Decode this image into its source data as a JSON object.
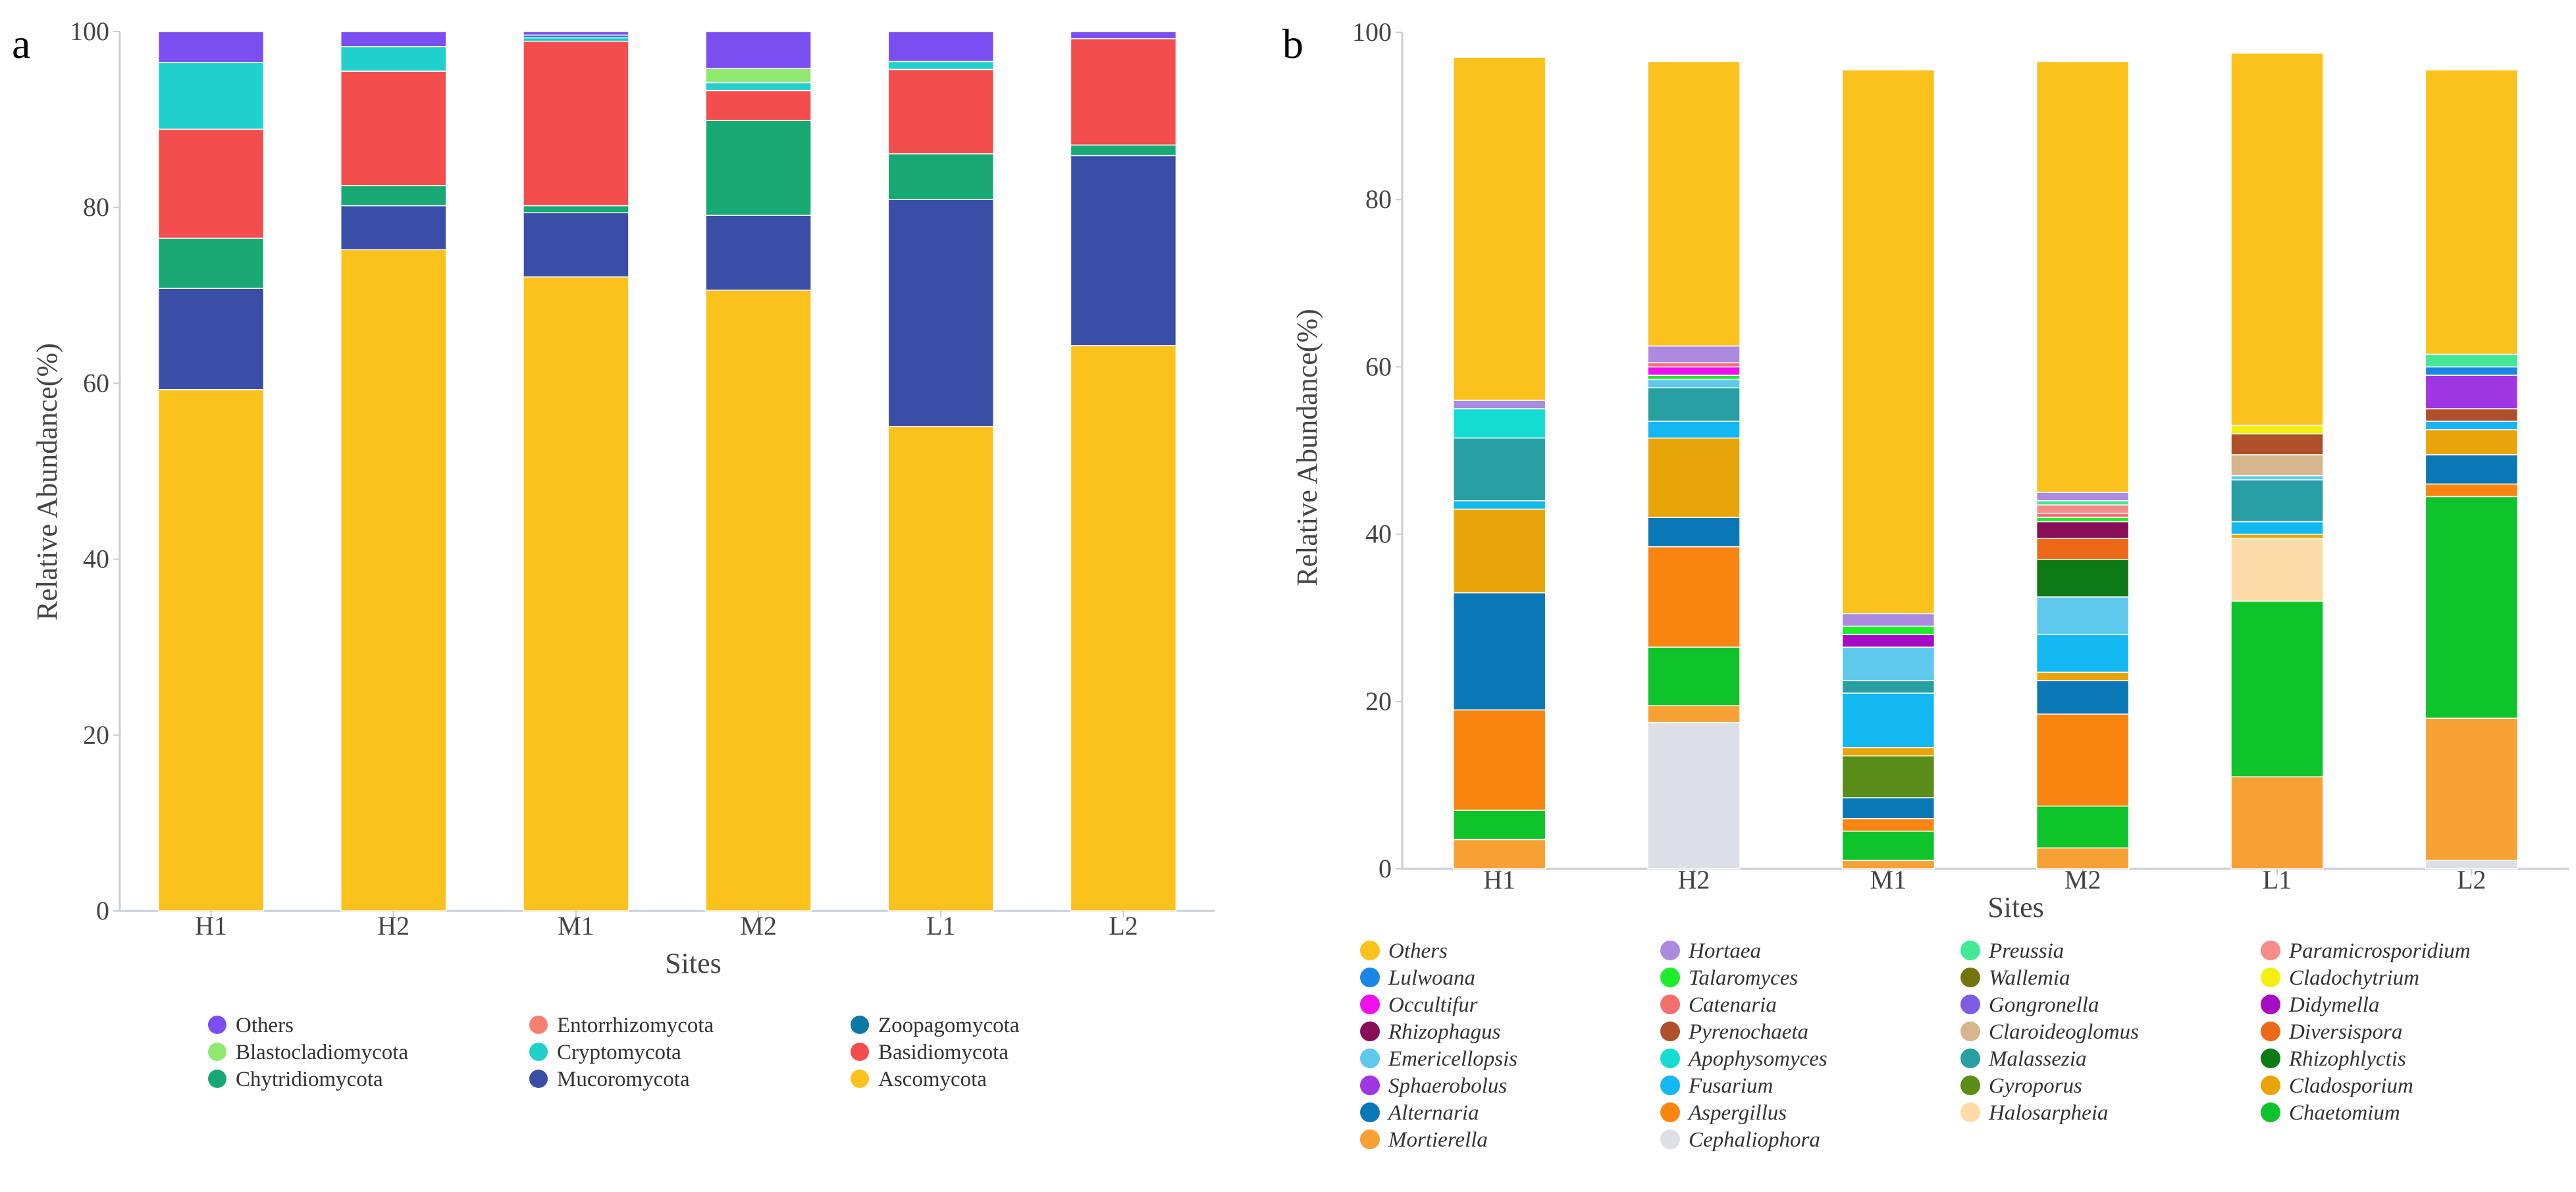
{
  "chart_data": [
    {
      "panel_label": "a",
      "type": "bar",
      "stacked": true,
      "title": "",
      "xlabel": "Sites",
      "ylabel": "Relative Abundance(%)",
      "ylim": [
        0,
        100
      ],
      "yticks": [
        0,
        20,
        40,
        60,
        80,
        100
      ],
      "categories": [
        "H1",
        "H2",
        "M1",
        "M2",
        "L1",
        "L2"
      ],
      "series": [
        {
          "name": "Ascomycota",
          "color": "#fbc21d",
          "values": [
            59.3,
            75.2,
            72.1,
            70.6,
            55.1,
            64.3
          ]
        },
        {
          "name": "Mucoromycota",
          "color": "#3a4ea8",
          "values": [
            11.5,
            5.0,
            7.3,
            8.5,
            25.8,
            21.6
          ]
        },
        {
          "name": "Chytridiomycota",
          "color": "#18a874",
          "values": [
            5.7,
            2.3,
            0.8,
            10.8,
            5.2,
            1.2
          ]
        },
        {
          "name": "Basidiomycota",
          "color": "#f44d4d",
          "values": [
            12.4,
            13.0,
            18.7,
            3.4,
            9.6,
            12.1
          ]
        },
        {
          "name": "Cryptomycota",
          "color": "#20d0cc",
          "values": [
            7.6,
            2.8,
            0.4,
            0.9,
            0.9,
            0.0
          ]
        },
        {
          "name": "Zoopagomycota",
          "color": "#0b78a6",
          "values": [
            0.0,
            0.0,
            0.3,
            0.0,
            0.0,
            0.0
          ]
        },
        {
          "name": "Blastocladiomycota",
          "color": "#8fe870",
          "values": [
            0.0,
            0.0,
            0.0,
            1.6,
            0.0,
            0.0
          ]
        },
        {
          "name": "Entorrhizomycota",
          "color": "#f98070",
          "values": [
            0.0,
            0.0,
            0.0,
            0.0,
            0.0,
            0.0
          ]
        },
        {
          "name": "Others",
          "color": "#7b4ef2",
          "values": [
            3.5,
            1.7,
            0.4,
            4.2,
            3.4,
            0.8
          ]
        }
      ],
      "legend": {
        "placement": "bottom",
        "entries": [
          {
            "label": "Others",
            "color": "#7b4ef2"
          },
          {
            "label": "Entorrhizomycota",
            "color": "#f98070"
          },
          {
            "label": "Zoopagomycota",
            "color": "#0b78a6"
          },
          {
            "label": "Blastocladiomycota",
            "color": "#8fe870"
          },
          {
            "label": "Cryptomycota",
            "color": "#20d0cc"
          },
          {
            "label": "Basidiomycota",
            "color": "#f44d4d"
          },
          {
            "label": "Chytridiomycota",
            "color": "#18a874"
          },
          {
            "label": "Mucoromycota",
            "color": "#3a4ea8"
          },
          {
            "label": "Ascomycota",
            "color": "#fbc21d"
          }
        ]
      }
    },
    {
      "panel_label": "b",
      "type": "bar",
      "stacked": true,
      "title": "",
      "xlabel": "Sites",
      "ylabel": "Relative Abundance(%)",
      "ylim": [
        0,
        100
      ],
      "yticks": [
        0,
        20,
        40,
        60,
        80,
        100
      ],
      "categories": [
        "H1",
        "H2",
        "M1",
        "M2",
        "L1",
        "L2"
      ],
      "series": [
        {
          "name": "Cephaliophora",
          "color": "#dcdfe6",
          "values": [
            0,
            17.5,
            0,
            0,
            0,
            1.0
          ]
        },
        {
          "name": "Mortierella",
          "color": "#f7a135",
          "values": [
            3.5,
            2.0,
            1.0,
            2.5,
            11.0,
            17.0
          ]
        },
        {
          "name": "Chaetomium",
          "color": "#0fc32a",
          "values": [
            3.5,
            7.0,
            3.5,
            5.0,
            21.0,
            26.5
          ]
        },
        {
          "name": "Aspergillus",
          "color": "#f98511",
          "values": [
            12.0,
            12.0,
            1.5,
            11.0,
            0,
            1.5
          ]
        },
        {
          "name": "Alternaria",
          "color": "#0b78b6",
          "values": [
            14.0,
            3.5,
            2.5,
            4.0,
            0,
            3.5
          ]
        },
        {
          "name": "Halosarpheia",
          "color": "#fddba8",
          "values": [
            0,
            0,
            0,
            0,
            7.5,
            0
          ]
        },
        {
          "name": "Gyroporus",
          "color": "#5a8d1a",
          "values": [
            0,
            0,
            5.0,
            0,
            0,
            0
          ]
        },
        {
          "name": "Cladosporium",
          "color": "#e8a50a",
          "values": [
            10.0,
            9.5,
            1.0,
            1.0,
            0.5,
            3.0
          ]
        },
        {
          "name": "Fusarium",
          "color": "#13b8f2",
          "values": [
            1.0,
            2.0,
            6.5,
            4.5,
            1.5,
            1.0
          ]
        },
        {
          "name": "Malassezia",
          "color": "#279fa3",
          "values": [
            7.5,
            4.0,
            1.5,
            0,
            5.0,
            0
          ]
        },
        {
          "name": "Emericellopsis",
          "color": "#5ec9ec",
          "values": [
            0,
            1.0,
            4.0,
            4.5,
            0.5,
            0
          ]
        },
        {
          "name": "Rhizophlyctis",
          "color": "#0d7a16",
          "values": [
            0,
            0,
            0,
            4.5,
            0,
            0
          ]
        },
        {
          "name": "Diversispora",
          "color": "#ec6a17",
          "values": [
            0,
            0,
            0,
            2.5,
            0,
            0
          ]
        },
        {
          "name": "Claroideoglomus",
          "color": "#d6b48c",
          "values": [
            0,
            0,
            0,
            0,
            2.5,
            0
          ]
        },
        {
          "name": "Pyrenochaeta",
          "color": "#b0502a",
          "values": [
            0,
            0,
            0,
            0,
            2.5,
            1.5
          ]
        },
        {
          "name": "Cladochytrium",
          "color": "#f5ee10",
          "values": [
            0,
            0,
            0,
            0,
            1.0,
            0
          ]
        },
        {
          "name": "Apophysomyces",
          "color": "#15dcd0",
          "values": [
            3.5,
            0,
            0,
            0,
            0,
            0
          ]
        },
        {
          "name": "Didymella",
          "color": "#a40bc2",
          "values": [
            0,
            0,
            1.5,
            0,
            0,
            0
          ]
        },
        {
          "name": "Rhizophagus",
          "color": "#880e58",
          "values": [
            0,
            0,
            0,
            2.0,
            0,
            0
          ]
        },
        {
          "name": "Sphaerobolus",
          "color": "#9f37e3",
          "values": [
            0,
            0,
            0,
            0,
            0,
            4.0
          ]
        },
        {
          "name": "Talaromyces",
          "color": "#1ded2a",
          "values": [
            0,
            0.5,
            1.0,
            0.5,
            0,
            0
          ]
        },
        {
          "name": "Lulwoana",
          "color": "#1a86e3",
          "values": [
            0,
            0,
            0,
            0,
            0,
            1.0
          ]
        },
        {
          "name": "Occultifur",
          "color": "#ee10ee",
          "values": [
            0,
            1.0,
            0,
            0,
            0,
            0
          ]
        },
        {
          "name": "Catenaria",
          "color": "#f66f6f",
          "values": [
            0,
            0.5,
            0,
            0.5,
            0,
            0
          ]
        },
        {
          "name": "Paramicrosporidium",
          "color": "#f58b8b",
          "values": [
            0,
            0,
            0,
            1.0,
            0,
            0
          ]
        },
        {
          "name": "Preussia",
          "color": "#42e896",
          "values": [
            0,
            0,
            0,
            0.5,
            0,
            1.5
          ]
        },
        {
          "name": "Wallemia",
          "color": "#75750f",
          "values": [
            0,
            0,
            0,
            0,
            0,
            0
          ]
        },
        {
          "name": "Gongronella",
          "color": "#7d5ce3",
          "values": [
            0,
            0,
            0,
            0,
            0,
            0
          ]
        },
        {
          "name": "Hortaea",
          "color": "#ad8ae0",
          "values": [
            1.0,
            2.0,
            1.5,
            1.0,
            0,
            0
          ]
        },
        {
          "name": "Others",
          "color": "#fbc21d",
          "values": [
            41.0,
            34.0,
            65.0,
            51.5,
            44.5,
            34.0
          ]
        }
      ],
      "legend": {
        "placement": "bottom",
        "entries": [
          {
            "label": "Others",
            "color": "#fbc21d"
          },
          {
            "label": "Hortaea",
            "color": "#ad8ae0"
          },
          {
            "label": "Preussia",
            "color": "#42e896"
          },
          {
            "label": "Paramicrosporidium",
            "color": "#f58b8b"
          },
          {
            "label": "Lulwoana",
            "color": "#1a86e3"
          },
          {
            "label": "Talaromyces",
            "color": "#1ded2a"
          },
          {
            "label": "Wallemia",
            "color": "#75750f"
          },
          {
            "label": "Cladochytrium",
            "color": "#f5ee10"
          },
          {
            "label": "Occultifur",
            "color": "#ee10ee"
          },
          {
            "label": "Catenaria",
            "color": "#f66f6f"
          },
          {
            "label": "Gongronella",
            "color": "#7d5ce3"
          },
          {
            "label": "Didymella",
            "color": "#a40bc2"
          },
          {
            "label": "Rhizophagus",
            "color": "#880e58"
          },
          {
            "label": "Pyrenochaeta",
            "color": "#b0502a"
          },
          {
            "label": "Claroideoglomus",
            "color": "#d6b48c"
          },
          {
            "label": "Diversispora",
            "color": "#ec6a17"
          },
          {
            "label": "Emericellopsis",
            "color": "#5ec9ec"
          },
          {
            "label": "Apophysomyces",
            "color": "#15dcd0"
          },
          {
            "label": "Malassezia",
            "color": "#279fa3"
          },
          {
            "label": "Rhizophlyctis",
            "color": "#0d7a16"
          },
          {
            "label": "Sphaerobolus",
            "color": "#9f37e3"
          },
          {
            "label": "Fusarium",
            "color": "#13b8f2"
          },
          {
            "label": "Gyroporus",
            "color": "#5a8d1a"
          },
          {
            "label": "Cladosporium",
            "color": "#e8a50a"
          },
          {
            "label": "Alternaria",
            "color": "#0b78b6"
          },
          {
            "label": "Aspergillus",
            "color": "#f98511"
          },
          {
            "label": "Halosarpheia",
            "color": "#fddba8"
          },
          {
            "label": "Chaetomium",
            "color": "#0fc32a"
          },
          {
            "label": "Mortierella",
            "color": "#f7a135"
          },
          {
            "label": "Cephaliophora",
            "color": "#dcdfe6"
          }
        ]
      }
    }
  ]
}
